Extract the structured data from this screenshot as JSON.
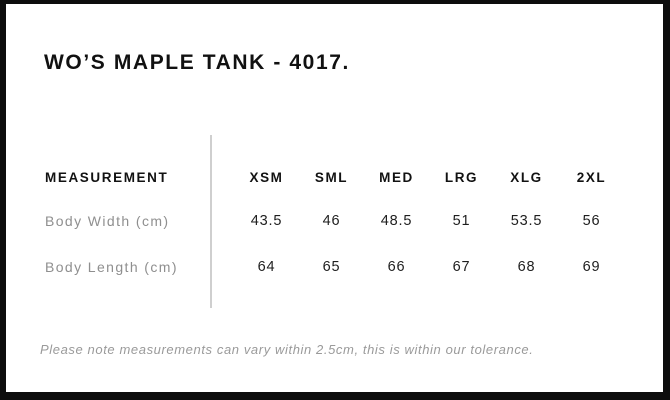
{
  "card": {
    "title": "WO’S MAPLE TANK - 4017.",
    "note": "Please note measurements can vary within 2.5cm, this is within our tolerance."
  },
  "size_chart": {
    "type": "table",
    "measurement_header": "MEASUREMENT",
    "size_columns": [
      "XSM",
      "SML",
      "MED",
      "LRG",
      "XLG",
      "2XL"
    ],
    "rows": [
      {
        "label": "Body Width (cm)",
        "values": [
          "43.5",
          "46",
          "48.5",
          "51",
          "53.5",
          "56"
        ]
      },
      {
        "label": "Body Length (cm)",
        "values": [
          "64",
          "65",
          "66",
          "67",
          "68",
          "69"
        ]
      }
    ]
  },
  "colors": {
    "frame_border": "#0d0d0d",
    "heading_text": "#121212",
    "value_text": "#1e1e1e",
    "row_label_text": "#8f8f8f",
    "note_text": "#9a9a9a",
    "divider": "#cfcfcf",
    "background": "#ffffff"
  }
}
